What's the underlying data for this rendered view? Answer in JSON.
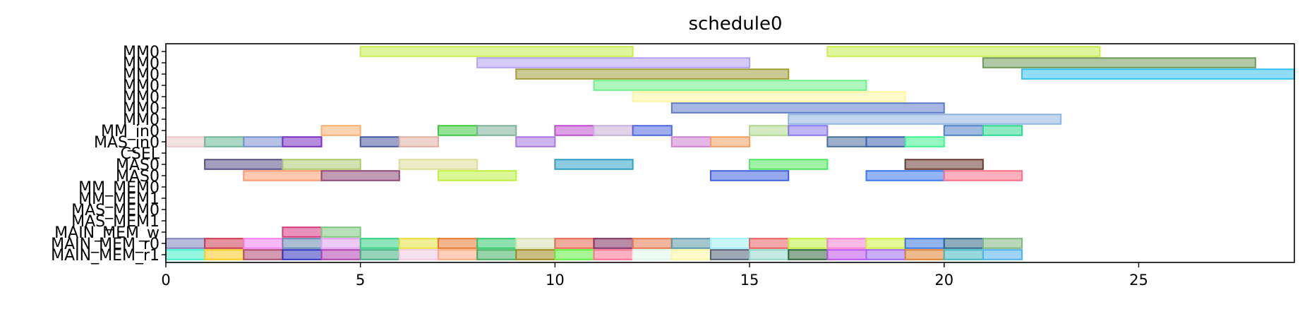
{
  "chart_data": {
    "type": "gantt",
    "title": "schedule0",
    "xlim": [
      0,
      29
    ],
    "xticks": [
      0,
      5,
      10,
      15,
      20,
      25
    ],
    "grid": false,
    "rows": [
      {
        "label": "MM0",
        "bars": [
          {
            "start": 5,
            "end": 12,
            "color": "#c6ee4f"
          },
          {
            "start": 17,
            "end": 24,
            "color": "#c6ee4f"
          }
        ]
      },
      {
        "label": "MM0",
        "bars": [
          {
            "start": 8,
            "end": 15,
            "color": "#b3a0f0"
          },
          {
            "start": 21,
            "end": 28,
            "color": "#6f9a5a"
          }
        ]
      },
      {
        "label": "MM0",
        "bars": [
          {
            "start": 9,
            "end": 16,
            "color": "#a39e3a"
          },
          {
            "start": 22,
            "end": 29,
            "color": "#35c2f0"
          }
        ]
      },
      {
        "label": "MM0",
        "bars": [
          {
            "start": 11,
            "end": 18,
            "color": "#6ff08a"
          }
        ]
      },
      {
        "label": "MM0",
        "bars": [
          {
            "start": 12,
            "end": 19,
            "color": "#fff59e"
          }
        ]
      },
      {
        "label": "MM0",
        "bars": [
          {
            "start": 13,
            "end": 20,
            "color": "#5f7ac6"
          }
        ]
      },
      {
        "label": "MM0",
        "bars": [
          {
            "start": 16,
            "end": 23,
            "color": "#8fb4e0"
          }
        ]
      },
      {
        "label": "MM_in0",
        "bars": [
          {
            "start": 4,
            "end": 5,
            "color": "#f7ae6f"
          },
          {
            "start": 7,
            "end": 8,
            "color": "#3ec83e"
          },
          {
            "start": 8,
            "end": 9,
            "color": "#7fb09a"
          },
          {
            "start": 10,
            "end": 11,
            "color": "#c050d0"
          },
          {
            "start": 11,
            "end": 12,
            "color": "#c8b0d8"
          },
          {
            "start": 12,
            "end": 13,
            "color": "#5068e0"
          },
          {
            "start": 15,
            "end": 16,
            "color": "#b0d890"
          },
          {
            "start": 16,
            "end": 17,
            "color": "#8a78f0"
          },
          {
            "start": 20,
            "end": 21,
            "color": "#5080c8"
          },
          {
            "start": 21,
            "end": 22,
            "color": "#30d890"
          }
        ]
      },
      {
        "label": "MAS_in0",
        "bars": [
          {
            "start": 0,
            "end": 1,
            "color": "#e8c8c8"
          },
          {
            "start": 1,
            "end": 2,
            "color": "#6ab898"
          },
          {
            "start": 2,
            "end": 3,
            "color": "#7890d0"
          },
          {
            "start": 3,
            "end": 4,
            "color": "#7a30c0"
          },
          {
            "start": 5,
            "end": 6,
            "color": "#4a5aa0"
          },
          {
            "start": 6,
            "end": 7,
            "color": "#e0b0a0"
          },
          {
            "start": 9,
            "end": 10,
            "color": "#a878e0"
          },
          {
            "start": 13,
            "end": 14,
            "color": "#d080d0"
          },
          {
            "start": 14,
            "end": 15,
            "color": "#f0a060"
          },
          {
            "start": 17,
            "end": 18,
            "color": "#4a70a0"
          },
          {
            "start": 18,
            "end": 19,
            "color": "#3a60b0"
          },
          {
            "start": 19,
            "end": 20,
            "color": "#40f090"
          }
        ]
      },
      {
        "label": "CSEL",
        "bars": []
      },
      {
        "label": "MAS0",
        "bars": [
          {
            "start": 1,
            "end": 3,
            "color": "#5a5088"
          },
          {
            "start": 3,
            "end": 5,
            "color": "#b0c870"
          },
          {
            "start": 6,
            "end": 8,
            "color": "#dcdc98"
          },
          {
            "start": 10,
            "end": 12,
            "color": "#30a0c8"
          },
          {
            "start": 15,
            "end": 17,
            "color": "#50e860"
          },
          {
            "start": 19,
            "end": 21,
            "color": "#6a3a30"
          }
        ]
      },
      {
        "label": "MAS0",
        "bars": [
          {
            "start": 2,
            "end": 4,
            "color": "#ff9a70"
          },
          {
            "start": 4,
            "end": 6,
            "color": "#904878"
          },
          {
            "start": 7,
            "end": 9,
            "color": "#c0f040"
          },
          {
            "start": 14,
            "end": 16,
            "color": "#4060e0"
          },
          {
            "start": 18,
            "end": 20,
            "color": "#3a78f0"
          },
          {
            "start": 20,
            "end": 22,
            "color": "#ff7088"
          }
        ]
      },
      {
        "label": "MM_MEM0",
        "bars": []
      },
      {
        "label": "MM_MEM1",
        "bars": []
      },
      {
        "label": "MAS_MEM0",
        "bars": []
      },
      {
        "label": "MAS_MEM1",
        "bars": []
      },
      {
        "label": "MAIN_MEM_w",
        "bars": [
          {
            "start": 3,
            "end": 4,
            "color": "#d83880"
          },
          {
            "start": 4,
            "end": 5,
            "color": "#80c880"
          }
        ]
      },
      {
        "label": "MAIN_MEM_r0",
        "bars": [
          {
            "start": 0,
            "end": 1,
            "color": "#8080c0"
          },
          {
            "start": 1,
            "end": 2,
            "color": "#d03850"
          },
          {
            "start": 2,
            "end": 3,
            "color": "#f080f0"
          },
          {
            "start": 3,
            "end": 4,
            "color": "#6888b0"
          },
          {
            "start": 4,
            "end": 5,
            "color": "#e0a0f0"
          },
          {
            "start": 5,
            "end": 6,
            "color": "#30d080"
          },
          {
            "start": 6,
            "end": 7,
            "color": "#e8e040"
          },
          {
            "start": 7,
            "end": 8,
            "color": "#e87830"
          },
          {
            "start": 8,
            "end": 9,
            "color": "#30c868"
          },
          {
            "start": 9,
            "end": 10,
            "color": "#d8e0b0"
          },
          {
            "start": 10,
            "end": 11,
            "color": "#e86850"
          },
          {
            "start": 11,
            "end": 12,
            "color": "#803060"
          },
          {
            "start": 12,
            "end": 13,
            "color": "#e87850"
          },
          {
            "start": 13,
            "end": 14,
            "color": "#5898a8"
          },
          {
            "start": 14,
            "end": 15,
            "color": "#a0f0f8"
          },
          {
            "start": 15,
            "end": 16,
            "color": "#e86060"
          },
          {
            "start": 16,
            "end": 17,
            "color": "#c0f040"
          },
          {
            "start": 17,
            "end": 18,
            "color": "#f880d0"
          },
          {
            "start": 18,
            "end": 19,
            "color": "#d0f040"
          },
          {
            "start": 19,
            "end": 20,
            "color": "#3878e0"
          },
          {
            "start": 20,
            "end": 21,
            "color": "#306888"
          },
          {
            "start": 21,
            "end": 22,
            "color": "#80b880"
          }
        ]
      },
      {
        "label": "MAIN_MEM_r1",
        "bars": [
          {
            "start": 0,
            "end": 1,
            "color": "#40f0c8"
          },
          {
            "start": 1,
            "end": 2,
            "color": "#ffc820"
          },
          {
            "start": 2,
            "end": 3,
            "color": "#b04870"
          },
          {
            "start": 3,
            "end": 4,
            "color": "#3030c0"
          },
          {
            "start": 4,
            "end": 5,
            "color": "#b040b0"
          },
          {
            "start": 5,
            "end": 6,
            "color": "#40b080"
          },
          {
            "start": 6,
            "end": 7,
            "color": "#f0c8e0"
          },
          {
            "start": 7,
            "end": 8,
            "color": "#ffa880"
          },
          {
            "start": 8,
            "end": 9,
            "color": "#40b060"
          },
          {
            "start": 9,
            "end": 10,
            "color": "#a08820"
          },
          {
            "start": 10,
            "end": 11,
            "color": "#60f040"
          },
          {
            "start": 11,
            "end": 12,
            "color": "#ff7090"
          },
          {
            "start": 12,
            "end": 13,
            "color": "#e0f8e8"
          },
          {
            "start": 13,
            "end": 14,
            "color": "#fff8a0"
          },
          {
            "start": 14,
            "end": 15,
            "color": "#506078"
          },
          {
            "start": 15,
            "end": 16,
            "color": "#90d8c8"
          },
          {
            "start": 16,
            "end": 17,
            "color": "#306840"
          },
          {
            "start": 17,
            "end": 18,
            "color": "#c050f0"
          },
          {
            "start": 18,
            "end": 19,
            "color": "#a068f0"
          },
          {
            "start": 19,
            "end": 20,
            "color": "#e08030"
          },
          {
            "start": 20,
            "end": 21,
            "color": "#40b8c0"
          },
          {
            "start": 21,
            "end": 22,
            "color": "#50b0f0"
          }
        ]
      }
    ]
  }
}
